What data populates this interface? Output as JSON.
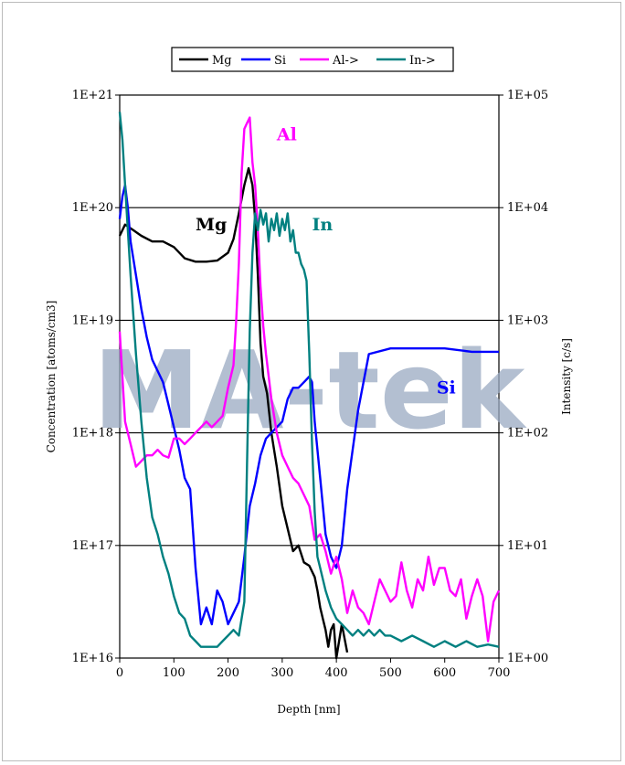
{
  "chart_data": {
    "type": "line",
    "title": "",
    "xlabel": "Depth [nm]",
    "ylabel": "Concentration [atoms/cm3]",
    "y2label": "Intensity [c/s]",
    "xlim": [
      0,
      700
    ],
    "ylim": [
      16,
      21
    ],
    "y_scale": "log",
    "y2lim": [
      0,
      5
    ],
    "y2_scale": "log",
    "grid": "horizontal",
    "legend_position": "top",
    "x_ticks": [
      "0",
      "100",
      "200",
      "300",
      "400",
      "500",
      "600",
      "700"
    ],
    "y_ticks": [
      "1E+16",
      "1E+17",
      "1E+18",
      "1E+19",
      "1E+20",
      "1E+21"
    ],
    "y2_ticks": [
      "1E+00",
      "1E+01",
      "1E+02",
      "1E+03",
      "1E+04",
      "1E+05"
    ],
    "watermark": "MA-tek",
    "series": [
      {
        "name": "Mg",
        "color": "#000000",
        "axis": "left",
        "x": [
          0,
          10,
          25,
          40,
          60,
          80,
          100,
          120,
          140,
          160,
          180,
          200,
          210,
          220,
          230,
          238,
          245,
          250,
          255,
          260,
          265,
          272,
          280,
          290,
          300,
          310,
          320,
          330,
          340,
          350,
          360,
          365,
          370,
          375,
          380,
          385,
          390,
          395,
          400,
          410,
          420
        ],
        "y": [
          19.75,
          19.85,
          19.8,
          19.75,
          19.7,
          19.7,
          19.65,
          19.55,
          19.52,
          19.52,
          19.53,
          19.6,
          19.72,
          19.95,
          20.2,
          20.35,
          20.2,
          19.9,
          19.4,
          18.8,
          18.5,
          18.35,
          18.0,
          17.7,
          17.35,
          17.15,
          16.95,
          17.0,
          16.85,
          16.82,
          16.72,
          16.6,
          16.45,
          16.35,
          16.25,
          16.1,
          16.25,
          16.3,
          16.0,
          16.3,
          16.05
        ]
      },
      {
        "name": "Si",
        "color": "#0000ff",
        "axis": "left",
        "x": [
          0,
          5,
          10,
          15,
          20,
          30,
          40,
          50,
          60,
          70,
          80,
          90,
          100,
          110,
          120,
          130,
          140,
          150,
          160,
          170,
          180,
          190,
          200,
          210,
          220,
          230,
          240,
          250,
          260,
          270,
          280,
          290,
          300,
          310,
          320,
          330,
          340,
          350,
          355,
          360,
          370,
          380,
          390,
          400,
          410,
          420,
          440,
          460,
          500,
          550,
          600,
          650,
          700
        ],
        "y": [
          19.9,
          20.1,
          20.2,
          20.0,
          19.7,
          19.4,
          19.1,
          18.85,
          18.65,
          18.55,
          18.45,
          18.25,
          18.05,
          17.85,
          17.6,
          17.5,
          16.8,
          16.3,
          16.45,
          16.3,
          16.6,
          16.5,
          16.3,
          16.4,
          16.5,
          16.9,
          17.35,
          17.55,
          17.8,
          17.95,
          18.0,
          18.05,
          18.1,
          18.3,
          18.4,
          18.4,
          18.45,
          18.5,
          18.45,
          18.1,
          17.6,
          17.1,
          16.9,
          16.8,
          17.0,
          17.5,
          18.2,
          18.7,
          18.75,
          18.75,
          18.75,
          18.72,
          18.72
        ]
      },
      {
        "name": "Al->",
        "color": "#ff00ff",
        "axis": "right",
        "x": [
          0,
          10,
          20,
          30,
          40,
          50,
          60,
          70,
          80,
          90,
          100,
          110,
          120,
          130,
          140,
          150,
          160,
          170,
          180,
          190,
          200,
          210,
          215,
          220,
          225,
          230,
          235,
          240,
          245,
          250,
          255,
          260,
          265,
          270,
          280,
          290,
          300,
          310,
          320,
          330,
          340,
          350,
          360,
          370,
          380,
          390,
          400,
          410,
          420,
          430,
          440,
          450,
          460,
          470,
          480,
          490,
          500,
          510,
          520,
          530,
          540,
          550,
          560,
          570,
          580,
          590,
          600,
          610,
          620,
          630,
          640,
          650,
          660,
          670,
          680,
          690,
          700
        ],
        "y": [
          2.9,
          2.1,
          1.9,
          1.7,
          1.75,
          1.8,
          1.8,
          1.85,
          1.8,
          1.78,
          1.95,
          1.95,
          1.9,
          1.95,
          2.0,
          2.05,
          2.1,
          2.05,
          2.1,
          2.15,
          2.4,
          2.6,
          3.0,
          3.5,
          4.3,
          4.7,
          4.75,
          4.8,
          4.4,
          4.2,
          3.8,
          3.3,
          2.95,
          2.7,
          2.3,
          2.0,
          1.8,
          1.7,
          1.6,
          1.55,
          1.45,
          1.35,
          1.05,
          1.1,
          0.95,
          0.75,
          0.9,
          0.7,
          0.4,
          0.6,
          0.45,
          0.4,
          0.3,
          0.5,
          0.7,
          0.6,
          0.5,
          0.55,
          0.85,
          0.6,
          0.45,
          0.7,
          0.6,
          0.9,
          0.65,
          0.8,
          0.8,
          0.6,
          0.55,
          0.7,
          0.35,
          0.55,
          0.7,
          0.55,
          0.15,
          0.5,
          0.6
        ]
      },
      {
        "name": "In->",
        "color": "#008080",
        "axis": "right",
        "x": [
          0,
          5,
          10,
          15,
          20,
          30,
          40,
          50,
          60,
          70,
          80,
          90,
          100,
          110,
          120,
          130,
          140,
          150,
          160,
          170,
          180,
          190,
          200,
          210,
          220,
          230,
          235,
          240,
          245,
          250,
          255,
          260,
          265,
          270,
          275,
          280,
          285,
          290,
          295,
          300,
          305,
          310,
          315,
          320,
          325,
          330,
          335,
          340,
          345,
          350,
          355,
          360,
          365,
          370,
          380,
          390,
          400,
          410,
          420,
          430,
          440,
          450,
          460,
          470,
          480,
          490,
          500,
          520,
          540,
          560,
          580,
          600,
          620,
          640,
          660,
          680,
          700
        ],
        "y": [
          4.85,
          4.6,
          4.2,
          3.8,
          3.4,
          2.7,
          2.1,
          1.6,
          1.25,
          1.1,
          0.9,
          0.75,
          0.55,
          0.4,
          0.35,
          0.2,
          0.15,
          0.1,
          0.1,
          0.1,
          0.1,
          0.15,
          0.2,
          0.25,
          0.2,
          0.5,
          1.7,
          2.9,
          3.6,
          3.95,
          3.8,
          3.98,
          3.85,
          3.95,
          3.7,
          3.9,
          3.8,
          3.95,
          3.75,
          3.9,
          3.8,
          3.95,
          3.7,
          3.8,
          3.6,
          3.6,
          3.5,
          3.45,
          3.35,
          2.7,
          1.9,
          1.3,
          0.9,
          0.8,
          0.6,
          0.45,
          0.35,
          0.3,
          0.25,
          0.2,
          0.25,
          0.2,
          0.25,
          0.2,
          0.25,
          0.2,
          0.2,
          0.15,
          0.2,
          0.15,
          0.1,
          0.15,
          0.1,
          0.15,
          0.1,
          0.12,
          0.1
        ]
      }
    ],
    "annotations": [
      {
        "text": "Mg",
        "color": "#000000",
        "x": 140,
        "y": 19.8
      },
      {
        "text": "Al",
        "color": "#ff00ff",
        "x": 290,
        "y": 20.6
      },
      {
        "text": "In",
        "color": "#008080",
        "x": 355,
        "y": 19.8
      },
      {
        "text": "Si",
        "color": "#0000ff",
        "x": 585,
        "y": 18.35
      }
    ]
  }
}
